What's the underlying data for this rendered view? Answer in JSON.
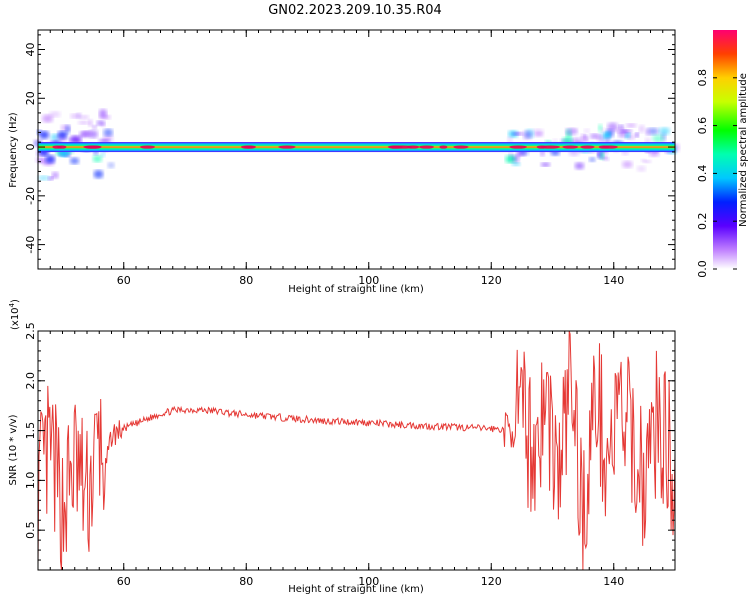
{
  "title": "GN02.2023.209.10.35.R04",
  "colors": {
    "snr_line": "#e53935",
    "ridge": "#e8005a",
    "axis": "#000000"
  },
  "chart_data": [
    {
      "type": "heatmap",
      "xlabel": "Height of straight line (km)",
      "ylabel": "Frequency (Hz)",
      "xlim": [
        46,
        150
      ],
      "ylim": [
        -50,
        48
      ],
      "xticks": [
        60,
        80,
        100,
        120,
        140
      ],
      "yticks": [
        -40,
        -20,
        0,
        20,
        40
      ],
      "colorbar": {
        "label": "Normalized spectral amplitude",
        "range": [
          0,
          1
        ],
        "ticks": [
          "0.0",
          "0.2",
          "0.4",
          "0.6",
          "0.8"
        ]
      },
      "ridge_frequency_hz": 0,
      "noise_regions_km": [
        [
          46,
          58
        ],
        [
          123,
          150
        ]
      ]
    },
    {
      "type": "line",
      "xlabel": "Height of straight line (km)",
      "ylabel": "SNR (10 * v/v)",
      "y_multiplier": "(x10",
      "y_multiplier_exp": "4",
      "y_multiplier_close": ")",
      "xlim": [
        46,
        150
      ],
      "ylim": [
        0.1,
        2.5
      ],
      "xticks": [
        60,
        80,
        100,
        120,
        140
      ],
      "yticks": [
        "0.5",
        "1.0",
        "1.5",
        "2.0",
        "2.5"
      ],
      "series": [
        {
          "x": [
            46,
            48,
            50,
            52,
            54,
            56,
            57,
            58,
            60,
            62,
            64,
            66,
            68,
            70,
            72,
            74,
            76,
            78,
            80,
            84,
            88,
            92,
            96,
            100,
            104,
            108,
            112,
            116,
            120,
            122,
            123,
            125,
            127,
            129,
            131,
            133,
            135,
            137,
            139,
            141,
            143,
            145,
            147,
            149,
            150
          ],
          "y": [
            0.9,
            1.3,
            0.7,
            1.2,
            0.8,
            1.4,
            1.1,
            1.45,
            1.52,
            1.57,
            1.62,
            1.67,
            1.7,
            1.71,
            1.71,
            1.7,
            1.69,
            1.67,
            1.66,
            1.64,
            1.62,
            1.6,
            1.59,
            1.58,
            1.56,
            1.55,
            1.54,
            1.53,
            1.52,
            1.51,
            1.5,
            1.6,
            1.3,
            1.8,
            1.0,
            2.1,
            0.6,
            1.9,
            1.2,
            1.7,
            1.4,
            1.0,
            1.6,
            1.3,
            1.0
          ]
        }
      ]
    }
  ]
}
